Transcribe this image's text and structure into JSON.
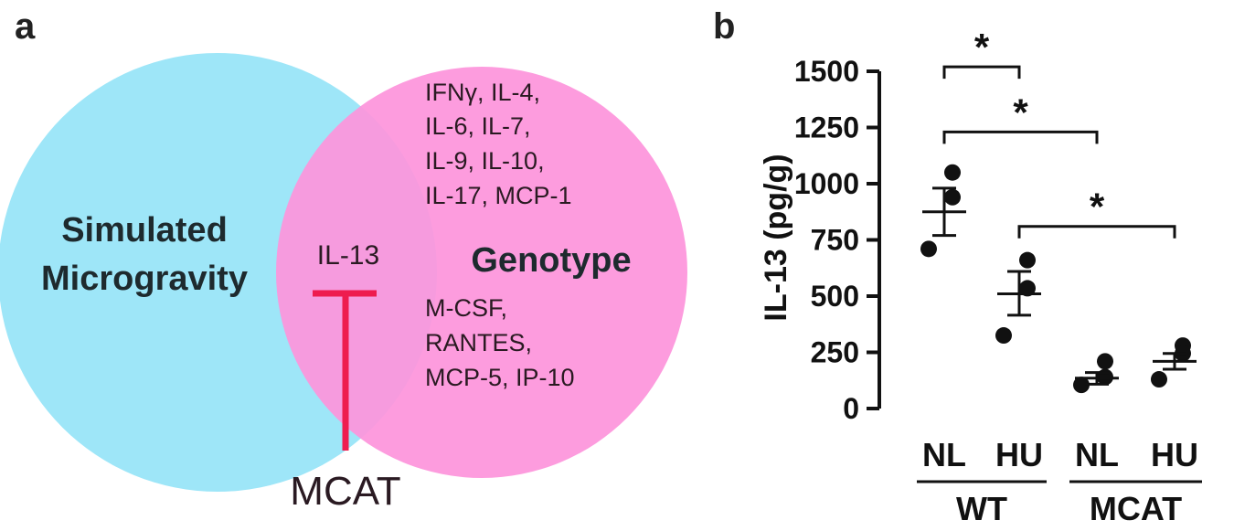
{
  "panel_a": {
    "letter": "a",
    "left_circle": {
      "lines": [
        "Simulated",
        "Microgravity"
      ],
      "color": "#9ee6f8"
    },
    "right_circle": {
      "label": "Genotype",
      "color": "#fd94dc"
    },
    "top_list": [
      "IFNγ, IL-4,",
      "IL-6, IL-7,",
      "IL-9, IL-10,",
      "IL-17, MCP-1"
    ],
    "bottom_list": [
      "M-CSF,",
      "RANTES,",
      "MCP-5, IP-10"
    ],
    "overlap_label": "IL-13",
    "inhibitor_label": "MCAT",
    "inhibitor_color": "#ee1c4f"
  },
  "panel_b": {
    "letter": "b"
  },
  "chart_data": {
    "type": "scatter",
    "ylabel": "IL-13 (pg/g)",
    "ylim": [
      0,
      1500
    ],
    "yticks": [
      0,
      250,
      500,
      750,
      1000,
      1250,
      1500
    ],
    "categories": [
      "NL",
      "HU",
      "NL",
      "HU"
    ],
    "groups": [
      {
        "label": "WT",
        "categories": [
          0,
          1
        ]
      },
      {
        "label": "MCAT",
        "categories": [
          2,
          3
        ]
      }
    ],
    "series": [
      {
        "category": "NL",
        "points": [
          1050,
          940,
          710
        ],
        "mean": 875,
        "sem_low": 770,
        "sem_high": 980
      },
      {
        "category": "HU",
        "points": [
          660,
          535,
          325
        ],
        "mean": 510,
        "sem_low": 415,
        "sem_high": 610
      },
      {
        "category": "NL",
        "points": [
          210,
          140,
          105
        ],
        "mean": 135,
        "sem_low": 108,
        "sem_high": 160
      },
      {
        "category": "HU",
        "points": [
          280,
          245,
          130
        ],
        "mean": 210,
        "sem_low": 175,
        "sem_high": 245
      }
    ],
    "significance": [
      {
        "from": 0,
        "to": 1,
        "label": "*",
        "y": 1520
      },
      {
        "from": 0,
        "to": 2,
        "label": "*",
        "y": 1230
      },
      {
        "from": 1,
        "to": 3,
        "label": "*",
        "y": 810
      }
    ]
  }
}
